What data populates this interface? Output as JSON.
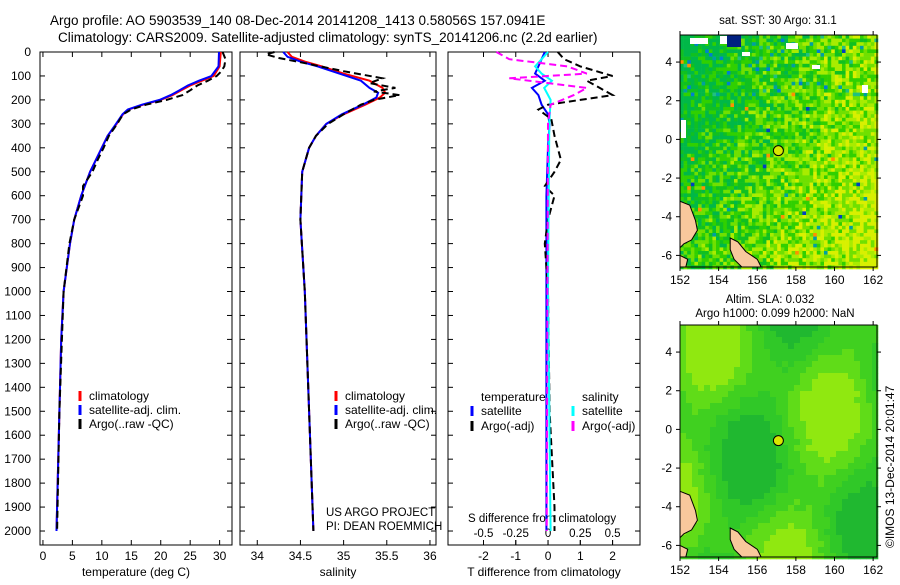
{
  "header": {
    "line1": "Argo profile: AO 5903539_140 08-Dec-2014 20141208_1413 0.58056S 157.0941E",
    "line2": "Climatology: CARS2009. Satellite-adjusted climatology: synTS_20141206.nc (2.2d earlier)"
  },
  "credit": "©IMOS 13-Dec-2014 20:01:47",
  "project": {
    "line1": "US ARGO PROJECT",
    "line2": "PI: DEAN ROEMMICH"
  },
  "colors": {
    "climatology": "#ff0000",
    "satellite": "#0000ff",
    "argo": "#000000",
    "sal_satellite": "#00ffff",
    "sal_argo": "#ff00ff",
    "land": "#f8c89c"
  },
  "chart_data": [
    {
      "type": "line",
      "xlabel": "temperature (deg C)",
      "ylabel": "",
      "xlim": [
        -0.5,
        32.1
      ],
      "ylim": [
        2121,
        0
      ],
      "xticks": [
        "0",
        "5",
        "10",
        "15",
        "20",
        "25",
        "30"
      ],
      "yticks": [
        "0",
        "100",
        "200",
        "300",
        "400",
        "500",
        "600",
        "700",
        "800",
        "900",
        "1000",
        "1100",
        "1200",
        "1300",
        "1400",
        "1500",
        "1600",
        "1700",
        "1800",
        "1900",
        "2000"
      ],
      "legend": [
        "climatology",
        "satellite-adj. clim.",
        "Argo(..raw -QC)"
      ],
      "legend_placement": "bottom-center",
      "series": [
        {
          "name": "climatology",
          "depth": [
            0,
            60,
            100,
            120,
            140,
            160,
            180,
            200,
            220,
            240,
            260,
            300,
            350,
            400,
            500,
            600,
            700,
            800,
            1000,
            1200,
            1500,
            2000
          ],
          "values": [
            30.2,
            30,
            29,
            27,
            25,
            23.5,
            22,
            20,
            17,
            14.5,
            13.6,
            12.5,
            11,
            10,
            8,
            6.5,
            5.3,
            4.6,
            3.5,
            3.1,
            2.8,
            2.3
          ]
        },
        {
          "name": "satellite-adj. clim.",
          "depth": [
            0,
            60,
            100,
            120,
            140,
            160,
            180,
            200,
            220,
            240,
            260,
            300,
            350,
            400,
            500,
            600,
            700,
            800,
            1000,
            1200,
            1500,
            2000
          ],
          "values": [
            29.9,
            29.8,
            28.6,
            26.5,
            24.6,
            23.2,
            21.7,
            19.8,
            16.8,
            14.4,
            13.5,
            12.4,
            11,
            10,
            8,
            6.5,
            5.3,
            4.6,
            3.5,
            3.1,
            2.8,
            2.3
          ]
        },
        {
          "name": "Argo(..raw -QC)",
          "depth": [
            0,
            30,
            60,
            80,
            100,
            120,
            140,
            160,
            180,
            200,
            220,
            240,
            260,
            300,
            350,
            400,
            450,
            500,
            560,
            600,
            700,
            800,
            1000,
            1500,
            2000
          ],
          "values": [
            30.5,
            31,
            30.8,
            30.3,
            29.5,
            28,
            26.2,
            25,
            23.7,
            21,
            17.5,
            15,
            13.6,
            12.6,
            11.2,
            10.3,
            9.3,
            8.4,
            6.8,
            6.8,
            5.3,
            4.5,
            3.5,
            2.8,
            2.4
          ]
        }
      ]
    },
    {
      "type": "line",
      "xlabel": "salinity",
      "xlim": [
        33.8,
        36.07
      ],
      "ylim": [
        2121,
        0
      ],
      "xticks": [
        "34",
        "34.5",
        "35",
        "35.5",
        "36"
      ],
      "legend": [
        "climatology",
        "satellite-adj. clim.",
        "Argo(..raw -QC)"
      ],
      "legend_placement": "bottom-center",
      "series": [
        {
          "name": "climatology",
          "depth": [
            0,
            20,
            40,
            60,
            90,
            120,
            150,
            170,
            190,
            220,
            260,
            300,
            350,
            400,
            500,
            700,
            1000,
            1500,
            2000
          ],
          "values": [
            34.35,
            34.4,
            34.55,
            34.75,
            35.0,
            35.3,
            35.45,
            35.48,
            35.42,
            35.25,
            35.0,
            34.8,
            34.68,
            34.6,
            34.52,
            34.5,
            34.55,
            34.6,
            34.65
          ]
        },
        {
          "name": "satellite-adj. clim.",
          "depth": [
            0,
            20,
            40,
            60,
            90,
            120,
            150,
            170,
            190,
            220,
            260,
            300,
            350,
            400,
            500,
            700,
            1000,
            1500,
            2000
          ],
          "values": [
            34.3,
            34.35,
            34.5,
            34.7,
            34.95,
            35.2,
            35.3,
            35.4,
            35.38,
            35.22,
            34.98,
            34.8,
            34.68,
            34.6,
            34.52,
            34.5,
            34.55,
            34.6,
            34.65
          ]
        },
        {
          "name": "Argo(..raw -QC)",
          "depth": [
            0,
            10,
            25,
            50,
            80,
            110,
            130,
            150,
            165,
            180,
            200,
            220,
            260,
            300,
            350,
            400,
            500,
            700,
            1000,
            1500,
            2000
          ],
          "values": [
            34.2,
            34.1,
            34.25,
            34.6,
            35.0,
            35.45,
            35.3,
            35.6,
            35.35,
            35.65,
            35.35,
            35.2,
            35.0,
            34.82,
            34.68,
            34.6,
            34.52,
            34.5,
            34.55,
            34.6,
            34.65
          ]
        }
      ]
    },
    {
      "type": "line",
      "xlabel": "T difference from climatology",
      "x2label": "S difference from climatology",
      "xlim": [
        -3.1,
        2.85
      ],
      "x2lim": [
        -0.775,
        0.7125
      ],
      "ylim": [
        2121,
        0
      ],
      "xticks": [
        "-2",
        "-1",
        "0",
        "1",
        "2"
      ],
      "x2ticks": [
        "-0.5",
        "-0.25",
        "0",
        "0.25",
        "0.5"
      ],
      "legend_headers": [
        "temperature",
        "salinity"
      ],
      "legend": [
        "satellite",
        "Argo(-adj)",
        "satellite",
        "Argo(-adj)"
      ],
      "series": [
        {
          "name": "temperature satellite",
          "axis": "T",
          "depth": [
            0,
            30,
            60,
            90,
            120,
            150,
            180,
            220,
            260,
            300,
            400,
            600,
            1000,
            2000
          ],
          "values": [
            -0.1,
            -0.2,
            -0.3,
            -0.4,
            -0.1,
            -0.5,
            -0.3,
            -0.2,
            0,
            0.05,
            0,
            -0.05,
            -0.05,
            -0.05
          ]
        },
        {
          "name": "temperature Argo(-adj)",
          "axis": "T",
          "depth": [
            0,
            30,
            60,
            80,
            100,
            120,
            150,
            180,
            200,
            220,
            240,
            280,
            350,
            450,
            500,
            560,
            600,
            700,
            800,
            1000,
            1500,
            1900,
            2000
          ],
          "values": [
            0.3,
            0.5,
            1.0,
            1.5,
            2.0,
            1.2,
            1.6,
            2.0,
            1.0,
            0,
            -0.3,
            0.1,
            0.2,
            0.4,
            0.2,
            -0.1,
            0.2,
            0,
            -0.1,
            0,
            0.05,
            0.2,
            0.2
          ]
        },
        {
          "name": "salinity satellite",
          "axis": "S",
          "depth": [
            0,
            30,
            60,
            90,
            120,
            150,
            200,
            300,
            1000,
            2000
          ],
          "values": [
            0,
            -0.05,
            -0.1,
            -0.05,
            0.03,
            -0.03,
            0.02,
            0.01,
            0,
            0.02
          ]
        },
        {
          "name": "salinity Argo(-adj)",
          "axis": "S",
          "depth": [
            0,
            30,
            60,
            90,
            110,
            150,
            180,
            220,
            300,
            2000
          ],
          "values": [
            -0.4,
            -0.3,
            0.15,
            0.3,
            -0.3,
            0.3,
            0.2,
            0.02,
            0,
            -0.01
          ]
        }
      ]
    },
    {
      "type": "heatmap",
      "title": "sat. SST: 30 Argo: 31.1",
      "xlim": [
        152,
        162.2
      ],
      "ylim": [
        -6.6,
        5.4
      ],
      "xticks": [
        "152",
        "154",
        "156",
        "158",
        "160",
        "162"
      ],
      "yticks": [
        "4",
        "2",
        "0",
        "-2",
        "-4",
        "-6"
      ],
      "argo_position": {
        "lon": 157.0941,
        "lat": -0.58056
      }
    },
    {
      "type": "heatmap",
      "title1": "Altim. SLA: 0.032",
      "title2": "Argo h1000: 0.099 h2000: NaN",
      "xlim": [
        152,
        162.2
      ],
      "ylim": [
        -6.6,
        5.4
      ],
      "xticks": [
        "152",
        "154",
        "156",
        "158",
        "160",
        "162"
      ],
      "yticks": [
        "4",
        "2",
        "0",
        "-2",
        "-4",
        "-6"
      ],
      "argo_position": {
        "lon": 157.0941,
        "lat": -0.58056
      }
    }
  ]
}
